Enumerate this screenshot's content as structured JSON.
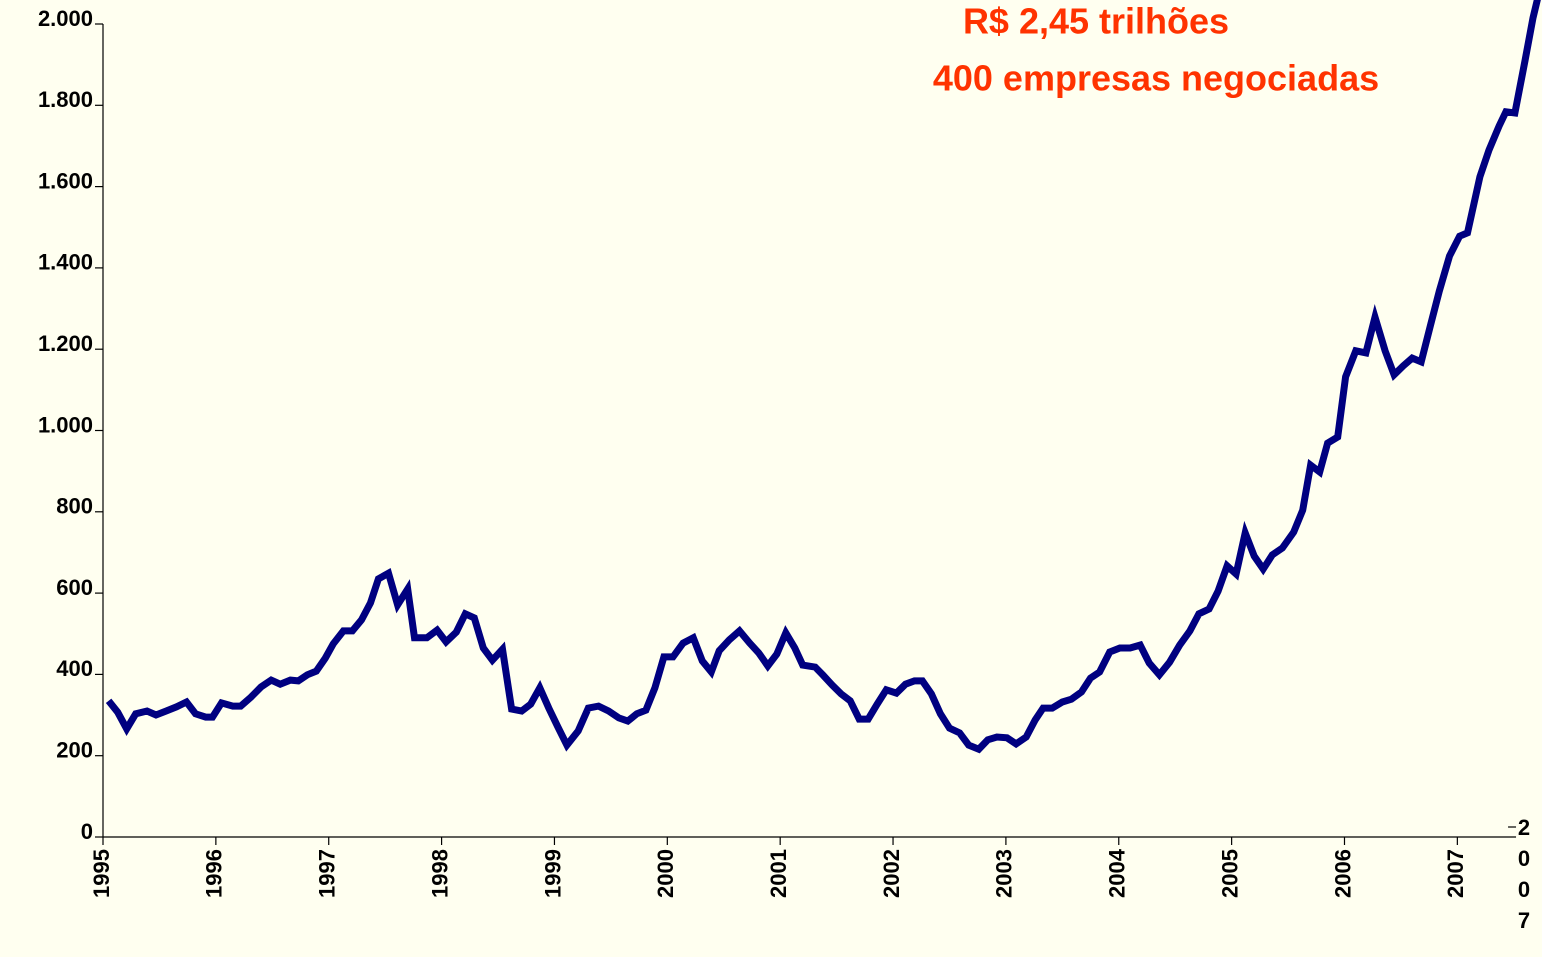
{
  "chart_data": {
    "type": "line",
    "annotations": [
      "R$ 2,45 trilhões",
      "400 empresas negociadas"
    ],
    "annotation_color": "#ff3300",
    "x": [
      1995.05,
      1995.13,
      1995.21,
      1995.29,
      1995.39,
      1995.47,
      1995.56,
      1995.65,
      1995.74,
      1995.82,
      1995.91,
      1995.97,
      1996.05,
      1996.15,
      1996.22,
      1996.31,
      1996.4,
      1996.49,
      1996.57,
      1996.66,
      1996.73,
      1996.81,
      1996.89,
      1996.97,
      1997.04,
      1997.13,
      1997.21,
      1997.29,
      1997.37,
      1997.44,
      1997.53,
      1997.61,
      1997.7,
      1997.76,
      1997.87,
      1997.96,
      1998.04,
      1998.13,
      1998.21,
      1998.29,
      1998.37,
      1998.45,
      1998.54,
      1998.62,
      1998.71,
      1998.79,
      1998.87,
      1998.95,
      1999.03,
      1999.11,
      1999.21,
      1999.3,
      1999.39,
      1999.48,
      1999.57,
      1999.65,
      1999.73,
      1999.81,
      1999.89,
      1999.97,
      2000.05,
      2000.14,
      2000.23,
      2000.31,
      2000.39,
      2000.46,
      2000.55,
      2000.64,
      2000.73,
      2000.81,
      2000.89,
      2000.97,
      2001.05,
      2001.13,
      2001.2,
      2001.31,
      2001.38,
      2001.46,
      2001.54,
      2001.62,
      2001.7,
      2001.78,
      2001.86,
      2001.94,
      2002.03,
      2002.11,
      2002.19,
      2002.26,
      2002.34,
      2002.42,
      2002.5,
      2002.59,
      2002.67,
      2002.76,
      2002.84,
      2002.92,
      2003.01,
      2003.09,
      2003.18,
      2003.26,
      2003.33,
      2003.41,
      2003.5,
      2003.58,
      2003.67,
      2003.75,
      2003.83,
      2003.92,
      2004.01,
      2004.1,
      2004.19,
      2004.27,
      2004.36,
      2004.45,
      2004.54,
      2004.63,
      2004.71,
      2004.8,
      2004.88,
      2004.96,
      2005.04,
      2005.12,
      2005.2,
      2005.28,
      2005.36,
      2005.45,
      2005.55,
      2005.63,
      2005.7,
      2005.78,
      2005.85,
      2005.94,
      2006.01,
      2006.1,
      2006.19,
      2006.27,
      2006.36,
      2006.44,
      2006.52,
      2006.6,
      2006.68,
      2006.76,
      2006.84,
      2006.93,
      2007.02,
      2007.09,
      2007.2,
      2007.28,
      2007.37,
      2007.43,
      2007.51,
      2007.6,
      2007.67,
      2007.73
    ],
    "series": [
      {
        "color": "#000080",
        "values": [
          335,
          307,
          266,
          303,
          310,
          300,
          310,
          320,
          332,
          303,
          295,
          295,
          330,
          322,
          322,
          344,
          369,
          386,
          376,
          386,
          384,
          399,
          408,
          440,
          475,
          507,
          507,
          534,
          576,
          635,
          649,
          571,
          610,
          490,
          490,
          509,
          480,
          504,
          549,
          539,
          465,
          435,
          462,
          315,
          310,
          327,
          367,
          317,
          271,
          226,
          261,
          317,
          322,
          310,
          293,
          285,
          303,
          312,
          367,
          443,
          443,
          477,
          490,
          433,
          406,
          458,
          485,
          507,
          477,
          453,
          421,
          450,
          502,
          465,
          423,
          418,
          398,
          374,
          352,
          335,
          290,
          290,
          327,
          362,
          354,
          376,
          384,
          384,
          352,
          303,
          268,
          256,
          226,
          216,
          239,
          246,
          244,
          229,
          246,
          288,
          317,
          317,
          332,
          339,
          357,
          391,
          406,
          455,
          465,
          465,
          472,
          428,
          399,
          430,
          472,
          507,
          549,
          561,
          605,
          667,
          647,
          748,
          691,
          659,
          694,
          711,
          750,
          804,
          915,
          898,
          969,
          984,
          1132,
          1196,
          1191,
          1279,
          1196,
          1137,
          1159,
          1178,
          1169,
          1257,
          1343,
          1429,
          1478,
          1486,
          1624,
          1690,
          1749,
          1784,
          1781,
          1911,
          2015,
          2084
        ]
      }
    ],
    "xlim": [
      1995,
      2007.75
    ],
    "xticks": [
      1995,
      1996,
      1997,
      1998,
      1999,
      2000,
      2001,
      2002,
      2003,
      2004,
      2005,
      2006,
      2007,
      {
        "value": 2007.52,
        "label": "2007"
      }
    ],
    "ylim": [
      0,
      2000
    ],
    "yticks": [
      0,
      200,
      400,
      600,
      800,
      {
        "value": 1000,
        "label": "1.000"
      },
      {
        "value": 1200,
        "label": "1.200"
      },
      {
        "value": 1400,
        "label": "1.400"
      },
      {
        "value": 1600,
        "label": "1.600"
      },
      {
        "value": 1800,
        "label": "1.800"
      },
      {
        "value": 2000,
        "label": "2.000"
      }
    ]
  }
}
